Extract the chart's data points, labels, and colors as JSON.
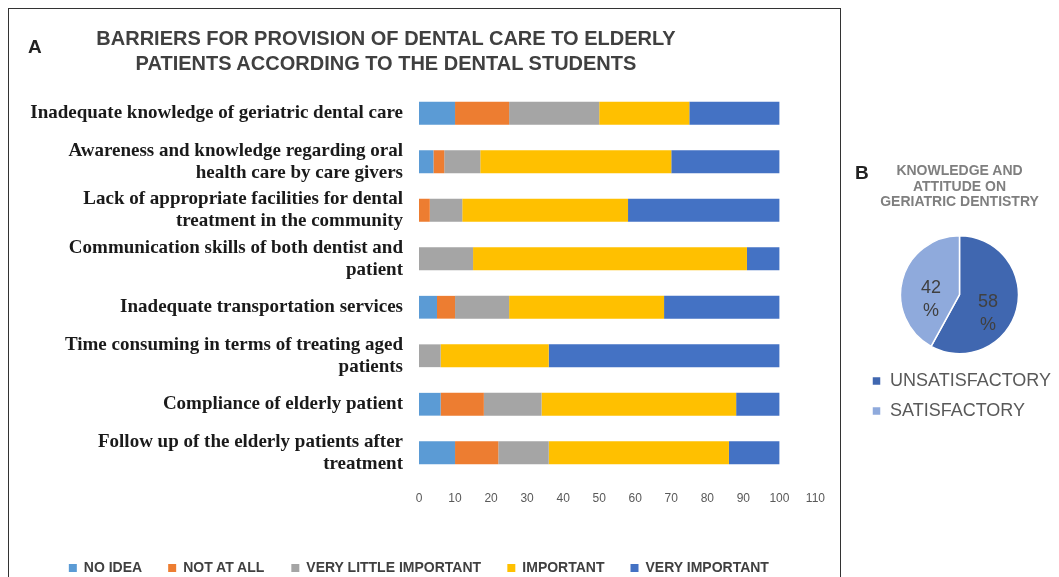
{
  "chart_data": [
    {
      "type": "bar",
      "orientation": "horizontal",
      "stacked": true,
      "title": "BARRIERS FOR PROVISION OF DENTAL CARE TO ELDERLY PATIENTS ACCORDING TO THE DENTAL STUDENTS",
      "annotations": [
        "A"
      ],
      "categories": [
        "Inadequate knowledge of geriatric dental care",
        "Awareness and knowledge regarding oral health care by care givers",
        "Lack of appropriate facilities for dental treatment in the community",
        "Communication skills of both dentist and patient",
        "Inadequate transportation services",
        "Time consuming in terms of treating aged patients",
        "Compliance of elderly patient",
        "Follow up of the elderly patients after treatment"
      ],
      "series": [
        {
          "name": "NO IDEA",
          "color": "#5b9bd5",
          "values": [
            10,
            4,
            0,
            0,
            5,
            0,
            6,
            10
          ]
        },
        {
          "name": "NOT AT ALL",
          "color": "#ed7d31",
          "values": [
            15,
            3,
            3,
            0,
            5,
            0,
            12,
            12
          ]
        },
        {
          "name": "VERY LITTLE IMPORTANT",
          "color": "#a5a5a5",
          "values": [
            25,
            10,
            9,
            15,
            15,
            6,
            16,
            14
          ]
        },
        {
          "name": "IMPORTANT",
          "color": "#ffc000",
          "values": [
            25,
            53,
            46,
            76,
            43,
            30,
            54,
            50
          ]
        },
        {
          "name": "VERY IMPORTANT",
          "color": "#4472c4",
          "values": [
            25,
            30,
            42,
            9,
            32,
            64,
            12,
            14
          ]
        }
      ],
      "xlim": [
        0,
        110
      ],
      "xticks": [
        0,
        10,
        20,
        30,
        40,
        50,
        60,
        70,
        80,
        90,
        100,
        110
      ],
      "grid": false,
      "legend": "bottom"
    },
    {
      "type": "pie",
      "title": "KNOWLEDGE AND ATTITUDE ON GERIATRIC DENTISTRY",
      "annotations": [
        "B"
      ],
      "categories": [
        "UNSATISFACTORY",
        "SATISFACTORY"
      ],
      "values": [
        58,
        42
      ],
      "colors": [
        "#4067b0",
        "#8faadc"
      ],
      "value_labels": [
        "58 %",
        "42 %"
      ],
      "legend": "bottom"
    }
  ]
}
